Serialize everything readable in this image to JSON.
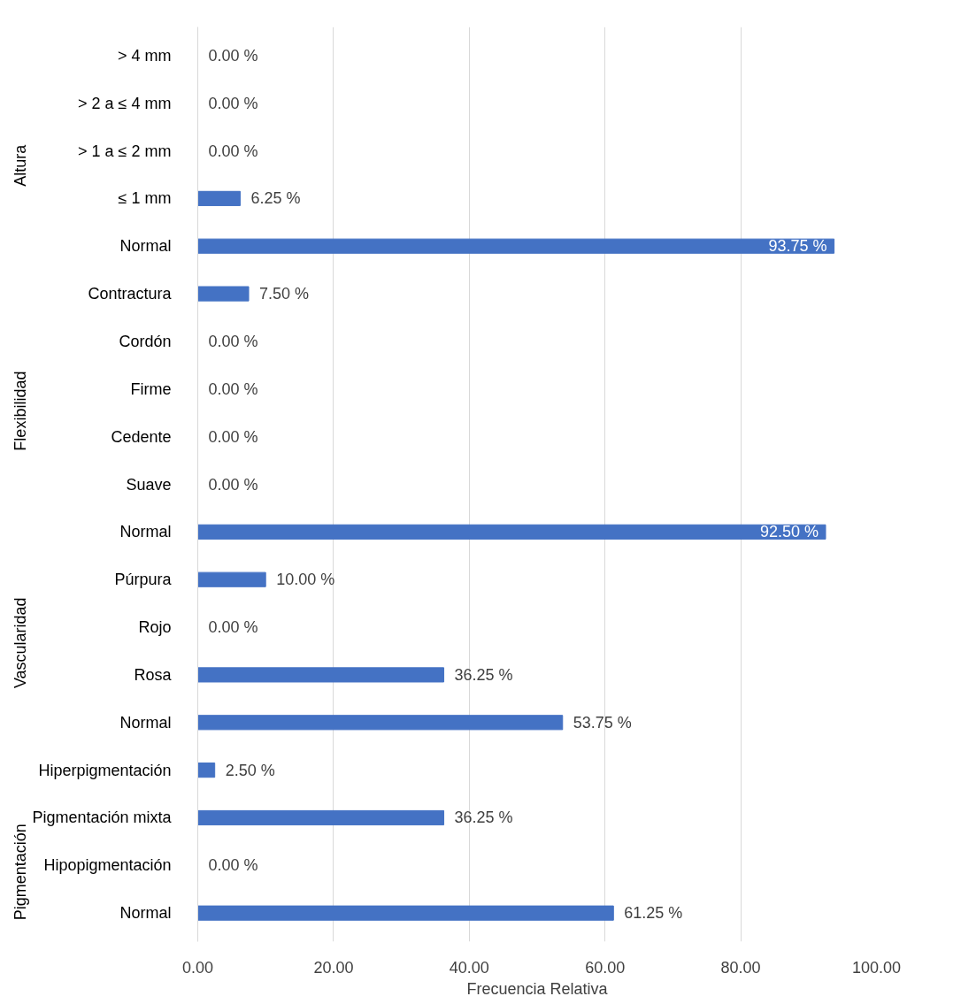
{
  "chart_data": {
    "type": "bar",
    "orientation": "horizontal",
    "xlabel": "Frecuencia Relativa",
    "categories": [
      "> 4 mm",
      "> 2 a ≤ 4 mm",
      "> 1 a ≤ 2 mm",
      "≤ 1 mm",
      "Normal",
      "Contractura",
      "Cordón",
      "Firme",
      "Cedente",
      "Suave",
      "Normal",
      "Púrpura",
      "Rojo",
      "Rosa",
      "Normal",
      "Hiperpigmentación",
      "Pigmentación mixta",
      "Hipopigmentación",
      "Normal"
    ],
    "values": [
      0,
      0,
      0,
      6.25,
      93.75,
      7.5,
      0,
      0,
      0,
      0,
      92.5,
      10,
      0,
      36.25,
      53.75,
      2.5,
      36.25,
      0,
      61.25
    ],
    "value_labels": [
      "0.00 %",
      "0.00 %",
      "0.00 %",
      "6.25 %",
      "93.75 %",
      "7.50 %",
      "0.00 %",
      "0.00 %",
      "0.00 %",
      "0.00 %",
      "92.50 %",
      "10.00 %",
      "0.00 %",
      "36.25 %",
      "53.75 %",
      "2.50 %",
      "36.25 %",
      "0.00 %",
      "61.25 %"
    ],
    "color": "#4472c4",
    "xlim": [
      0,
      100
    ],
    "xticks": [
      {
        "value": 0,
        "label": "0.00"
      },
      {
        "value": 20,
        "label": "20.00"
      },
      {
        "value": 40,
        "label": "40.00"
      },
      {
        "value": 60,
        "label": "60.00"
      },
      {
        "value": 80,
        "label": "80.00"
      },
      {
        "value": 100,
        "label": "100.00"
      }
    ],
    "grid": "x",
    "annotations": [
      "Altura",
      "Flexibilidad",
      "Vascularidad",
      "Pigmentación"
    ]
  }
}
